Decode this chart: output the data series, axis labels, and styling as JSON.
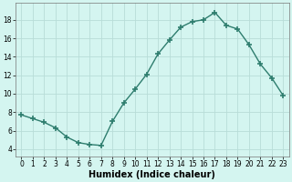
{
  "x": [
    0,
    1,
    2,
    3,
    4,
    5,
    6,
    7,
    8,
    9,
    10,
    11,
    12,
    13,
    14,
    15,
    16,
    17,
    18,
    19,
    20,
    21,
    22,
    23
  ],
  "y": [
    7.7,
    7.3,
    6.9,
    6.3,
    5.3,
    4.7,
    4.5,
    4.4,
    7.0,
    9.0,
    10.5,
    12.1,
    14.3,
    15.8,
    17.2,
    17.8,
    18.0,
    18.8,
    17.4,
    17.0,
    15.3,
    13.2,
    11.7,
    9.8
  ],
  "line_color": "#2e7d6e",
  "marker": "+",
  "marker_size": 4,
  "marker_lw": 1.2,
  "line_width": 1.0,
  "bg_color": "#d4f5f0",
  "grid_color": "#b8ddd8",
  "xlabel": "Humidex (Indice chaleur)",
  "xlabel_fontsize": 7,
  "ytick_labels": [
    "4",
    "6",
    "8",
    "10",
    "12",
    "14",
    "16",
    "18"
  ],
  "ytick_vals": [
    4,
    6,
    8,
    10,
    12,
    14,
    16,
    18
  ],
  "ylim": [
    3.2,
    19.8
  ],
  "xlim": [
    -0.5,
    23.5
  ],
  "xtick_labels": [
    "0",
    "1",
    "2",
    "3",
    "4",
    "5",
    "6",
    "7",
    "8",
    "9",
    "10",
    "11",
    "12",
    "13",
    "14",
    "15",
    "16",
    "17",
    "18",
    "19",
    "20",
    "21",
    "22",
    "23"
  ],
  "tick_fontsize": 5.5
}
